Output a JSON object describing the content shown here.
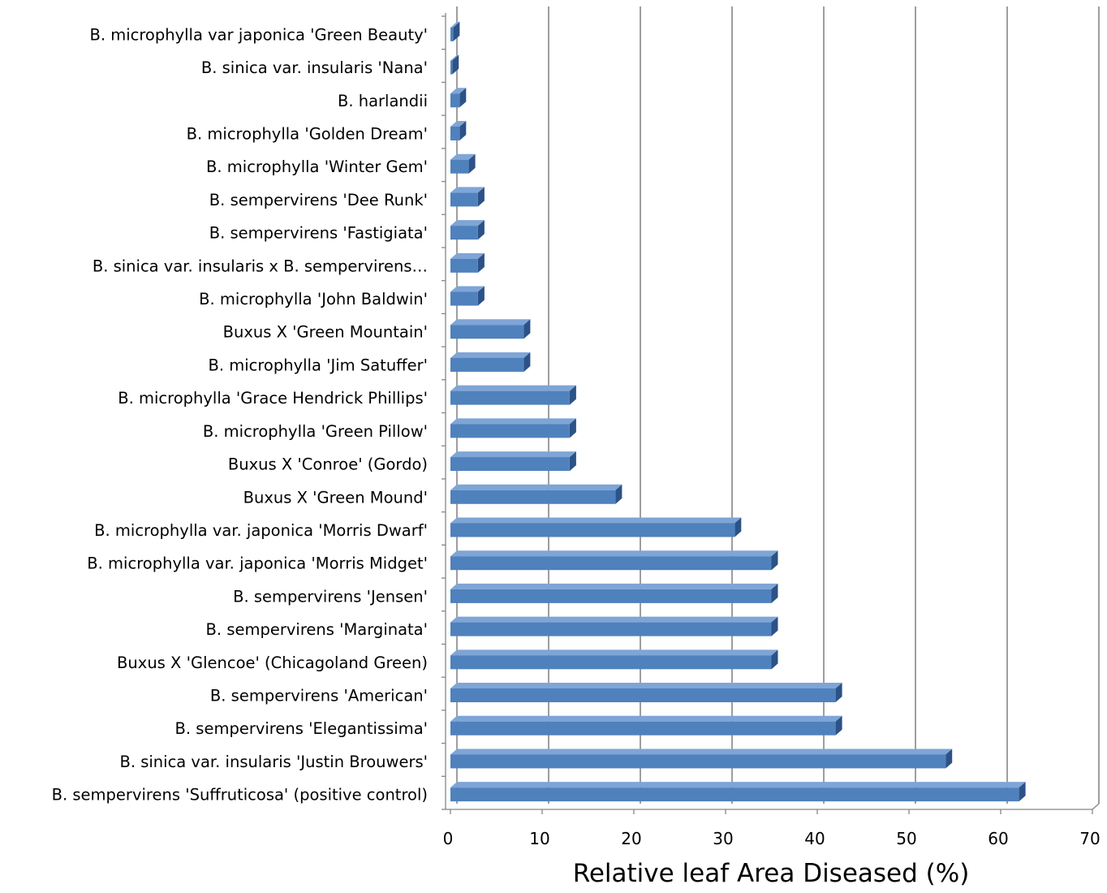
{
  "chart_data": {
    "type": "bar",
    "orientation": "horizontal",
    "style": "3d",
    "title": "",
    "xlabel": "Relative leaf Area Diseased (%)",
    "ylabel": "",
    "xlim": [
      0,
      70
    ],
    "x_ticks": [
      "0",
      "10",
      "20",
      "30",
      "40",
      "50",
      "60",
      "70"
    ],
    "grid": "vertical",
    "legend": "none",
    "colors": {
      "bar_front": "#4f81bd",
      "bar_top": "#7ea5d6",
      "bar_side": "#2c5287",
      "gridline": "#868686",
      "axis": "#868686"
    },
    "categories": [
      "B. microphylla var japonica 'Green Beauty'",
      "B. sinica var. insularis 'Nana'",
      "B. harlandii",
      "B. microphylla 'Golden Dream'",
      "B. microphylla 'Winter Gem'",
      "B. sempervirens 'Dee Runk'",
      "B. sempervirens 'Fastigiata'",
      "B. sinica var. insularis x B. sempervirens…",
      "B. microphylla 'John Baldwin'",
      "Buxus X 'Green Mountain'",
      "B. microphylla 'Jim Satuffer'",
      "B. microphylla 'Grace Hendrick Phillips'",
      "B. microphylla 'Green Pillow'",
      "Buxus X 'Conroe' (Gordo)",
      "Buxus X 'Green Mound'",
      "B. microphylla var. japonica 'Morris Dwarf'",
      "B. microphylla var. japonica 'Morris Midget'",
      "B. sempervirens 'Jensen'",
      "B. sempervirens 'Marginata'",
      "Buxus X 'Glencoe'  (Chicagoland Green)",
      "B. sempervirens 'American'",
      "B. sempervirens 'Elegantissima'",
      "B. sinica var. insularis  'Justin Brouwers'",
      "B. sempervirens 'Suffruticosa' (positive control)"
    ],
    "values": [
      0.3,
      0.2,
      1,
      1,
      2,
      3,
      3,
      3,
      3,
      8,
      8,
      13,
      13,
      13,
      18,
      31,
      35,
      35,
      35,
      35,
      42,
      42,
      54,
      62
    ]
  }
}
